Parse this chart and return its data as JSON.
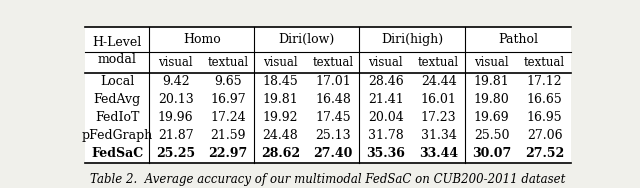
{
  "title": "Table 2.  Average accuracy of our multimodal FedSaC on CUB200-2011 dataset",
  "col_groups": [
    "Homo",
    "Diri(low)",
    "Diri(high)",
    "Pathol"
  ],
  "row_header": "H-Level\nmodal",
  "rows": [
    {
      "name": "Local",
      "values": [
        "9.42",
        "9.65",
        "18.45",
        "17.01",
        "28.46",
        "24.44",
        "19.81",
        "17.12"
      ],
      "bold": false
    },
    {
      "name": "FedAvg",
      "values": [
        "20.13",
        "16.97",
        "19.81",
        "16.48",
        "21.41",
        "16.01",
        "19.80",
        "16.65"
      ],
      "bold": false
    },
    {
      "name": "FedIoT",
      "values": [
        "19.96",
        "17.24",
        "19.92",
        "17.45",
        "20.04",
        "17.23",
        "19.69",
        "16.95"
      ],
      "bold": false
    },
    {
      "name": "pFedGraph",
      "values": [
        "21.87",
        "21.59",
        "24.48",
        "25.13",
        "31.78",
        "31.34",
        "25.50",
        "27.06"
      ],
      "bold": false
    },
    {
      "name": "FedSaC",
      "values": [
        "25.25",
        "22.97",
        "28.62",
        "27.40",
        "35.36",
        "33.44",
        "30.07",
        "27.52"
      ],
      "bold": true
    }
  ],
  "bg_color": "#f0f0eb",
  "table_bg": "#ffffff",
  "font_size": 9.0,
  "caption_font_size": 8.5
}
